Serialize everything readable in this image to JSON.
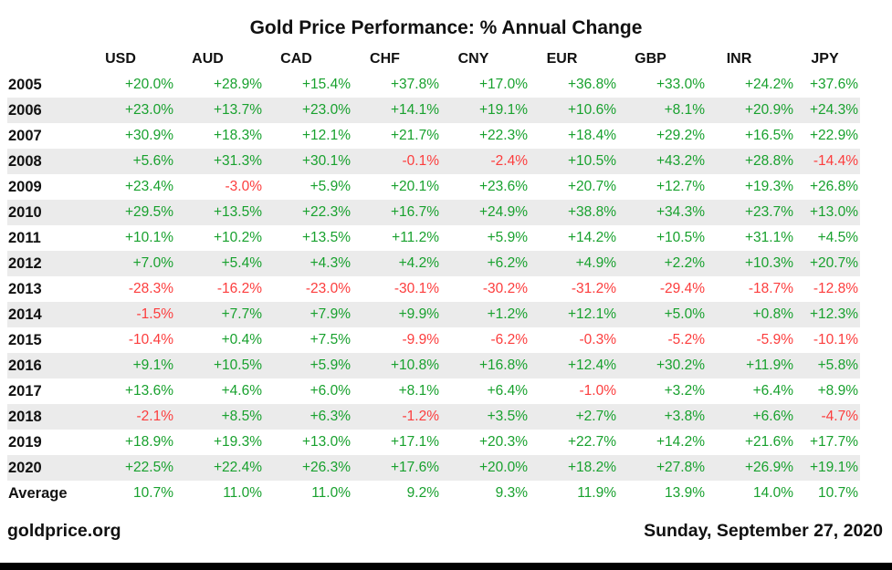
{
  "title": "Gold Price Performance: % Annual Change",
  "footer": {
    "site": "goldprice.org",
    "date": "Sunday, September 27, 2020"
  },
  "colors": {
    "positive": "#18a12e",
    "negative": "#fc3d3d",
    "stripe": "#ebebeb",
    "bottom_bar": "#000000"
  },
  "chart_data": {
    "type": "table",
    "title": "Gold Price Performance: % Annual Change",
    "columns": [
      "USD",
      "AUD",
      "CAD",
      "CHF",
      "CNY",
      "EUR",
      "GBP",
      "INR",
      "JPY"
    ],
    "rows": [
      {
        "label": "2005",
        "values": [
          "+20.0%",
          "+28.9%",
          "+15.4%",
          "+37.8%",
          "+17.0%",
          "+36.8%",
          "+33.0%",
          "+24.2%",
          "+37.6%"
        ]
      },
      {
        "label": "2006",
        "values": [
          "+23.0%",
          "+13.7%",
          "+23.0%",
          "+14.1%",
          "+19.1%",
          "+10.6%",
          "+8.1%",
          "+20.9%",
          "+24.3%"
        ]
      },
      {
        "label": "2007",
        "values": [
          "+30.9%",
          "+18.3%",
          "+12.1%",
          "+21.7%",
          "+22.3%",
          "+18.4%",
          "+29.2%",
          "+16.5%",
          "+22.9%"
        ]
      },
      {
        "label": "2008",
        "values": [
          "+5.6%",
          "+31.3%",
          "+30.1%",
          "-0.1%",
          "-2.4%",
          "+10.5%",
          "+43.2%",
          "+28.8%",
          "-14.4%"
        ]
      },
      {
        "label": "2009",
        "values": [
          "+23.4%",
          "-3.0%",
          "+5.9%",
          "+20.1%",
          "+23.6%",
          "+20.7%",
          "+12.7%",
          "+19.3%",
          "+26.8%"
        ]
      },
      {
        "label": "2010",
        "values": [
          "+29.5%",
          "+13.5%",
          "+22.3%",
          "+16.7%",
          "+24.9%",
          "+38.8%",
          "+34.3%",
          "+23.7%",
          "+13.0%"
        ]
      },
      {
        "label": "2011",
        "values": [
          "+10.1%",
          "+10.2%",
          "+13.5%",
          "+11.2%",
          "+5.9%",
          "+14.2%",
          "+10.5%",
          "+31.1%",
          "+4.5%"
        ]
      },
      {
        "label": "2012",
        "values": [
          "+7.0%",
          "+5.4%",
          "+4.3%",
          "+4.2%",
          "+6.2%",
          "+4.9%",
          "+2.2%",
          "+10.3%",
          "+20.7%"
        ]
      },
      {
        "label": "2013",
        "values": [
          "-28.3%",
          "-16.2%",
          "-23.0%",
          "-30.1%",
          "-30.2%",
          "-31.2%",
          "-29.4%",
          "-18.7%",
          "-12.8%"
        ]
      },
      {
        "label": "2014",
        "values": [
          "-1.5%",
          "+7.7%",
          "+7.9%",
          "+9.9%",
          "+1.2%",
          "+12.1%",
          "+5.0%",
          "+0.8%",
          "+12.3%"
        ]
      },
      {
        "label": "2015",
        "values": [
          "-10.4%",
          "+0.4%",
          "+7.5%",
          "-9.9%",
          "-6.2%",
          "-0.3%",
          "-5.2%",
          "-5.9%",
          "-10.1%"
        ]
      },
      {
        "label": "2016",
        "values": [
          "+9.1%",
          "+10.5%",
          "+5.9%",
          "+10.8%",
          "+16.8%",
          "+12.4%",
          "+30.2%",
          "+11.9%",
          "+5.8%"
        ]
      },
      {
        "label": "2017",
        "values": [
          "+13.6%",
          "+4.6%",
          "+6.0%",
          "+8.1%",
          "+6.4%",
          "-1.0%",
          "+3.2%",
          "+6.4%",
          "+8.9%"
        ]
      },
      {
        "label": "2018",
        "values": [
          "-2.1%",
          "+8.5%",
          "+6.3%",
          "-1.2%",
          "+3.5%",
          "+2.7%",
          "+3.8%",
          "+6.6%",
          "-4.7%"
        ]
      },
      {
        "label": "2019",
        "values": [
          "+18.9%",
          "+19.3%",
          "+13.0%",
          "+17.1%",
          "+20.3%",
          "+22.7%",
          "+14.2%",
          "+21.6%",
          "+17.7%"
        ]
      },
      {
        "label": "2020",
        "values": [
          "+22.5%",
          "+22.4%",
          "+26.3%",
          "+17.6%",
          "+20.0%",
          "+18.2%",
          "+27.8%",
          "+26.9%",
          "+19.1%"
        ]
      },
      {
        "label": "Average",
        "values": [
          "10.7%",
          "11.0%",
          "11.0%",
          "9.2%",
          "9.3%",
          "11.9%",
          "13.9%",
          "14.0%",
          "10.7%"
        ]
      }
    ]
  }
}
